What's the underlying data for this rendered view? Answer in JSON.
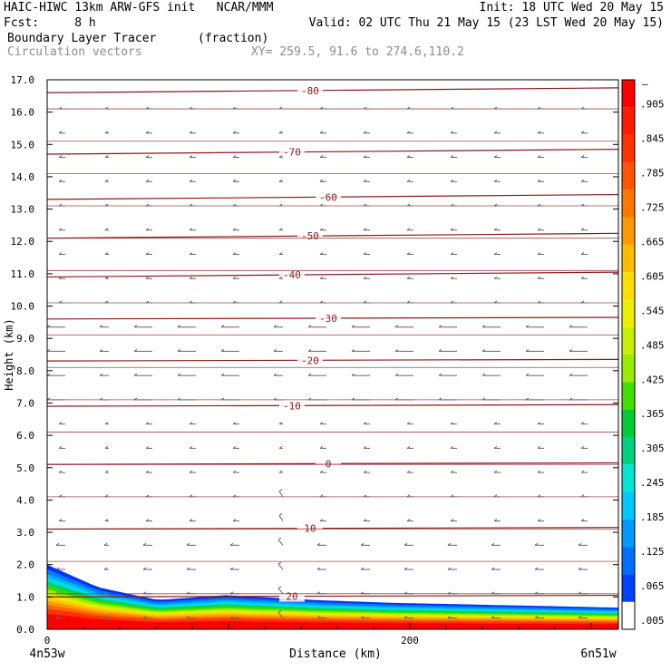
{
  "header": {
    "line1_left": "HAIC-HIWC 13km ARW-GFS init   NCAR/MMM",
    "line1_right": "Init: 18 UTC Wed 20 May 15",
    "line2_left": "Fcst:     8 h",
    "line2_right": "Valid: 02 UTC Thu 21 May 15 (23 LST Wed 20 May 15)",
    "field_name": "Boundary Layer Tracer",
    "field_units": "(fraction)",
    "vectors_label": "Circulation vectors",
    "xy_label": "XY= 259.5, 91.6 to 274.6,110.2"
  },
  "axes": {
    "ylabel": "Height (km)",
    "xlabel": "Distance (km)",
    "left_endpoint": "4n53w",
    "right_endpoint": "6n51w"
  },
  "chart_data": {
    "type": "heatmap",
    "title": "Boundary Layer Tracer",
    "xlabel": "Distance (km)",
    "ylabel": "Height (km)",
    "xlim": [
      0,
      315
    ],
    "ylim": [
      0,
      17
    ],
    "x_ticks": [
      0,
      200
    ],
    "y_ticks": [
      "0.0",
      "1.0",
      "2.0",
      "3.0",
      "4.0",
      "5.0",
      "6.0",
      "7.0",
      "8.0",
      "9.0",
      "10.0",
      "11.0",
      "12.0",
      "13.0",
      "14.0",
      "15.0",
      "16.0",
      "17.0"
    ],
    "colorbar": {
      "labels": [
        ".005",
        ".065",
        ".125",
        ".185",
        ".245",
        ".305",
        ".365",
        ".425",
        ".485",
        ".545",
        ".605",
        ".665",
        ".725",
        ".785",
        ".845",
        ".905"
      ],
      "top_label": "–",
      "colors": [
        "#ffffff",
        "#0040ff",
        "#0070ff",
        "#0099ff",
        "#00c8ff",
        "#00e6d2",
        "#00d080",
        "#00cc33",
        "#44dd00",
        "#99ee00",
        "#ccee00",
        "#eeee00",
        "#ffdd00",
        "#ffbb00",
        "#ff9900",
        "#ff7700",
        "#ff5500",
        "#ff3300",
        "#ff1a00",
        "#ff0000"
      ]
    },
    "temperature_contours": [
      {
        "label": "20",
        "height_km": 1.0
      },
      {
        "label": "10",
        "height_km": 3.1
      },
      {
        "label": "0",
        "height_km": 5.1
      },
      {
        "label": "-10",
        "height_km": 6.9
      },
      {
        "label": "-20",
        "height_km": 8.3
      },
      {
        "label": "-30",
        "height_km": 9.6
      },
      {
        "label": "-40",
        "height_km": 10.9
      },
      {
        "label": "-50",
        "height_km": 12.1
      },
      {
        "label": "-60",
        "height_km": 13.3
      },
      {
        "label": "-70",
        "height_km": 14.7
      },
      {
        "label": "-80",
        "height_km": 16.6
      }
    ]
  }
}
